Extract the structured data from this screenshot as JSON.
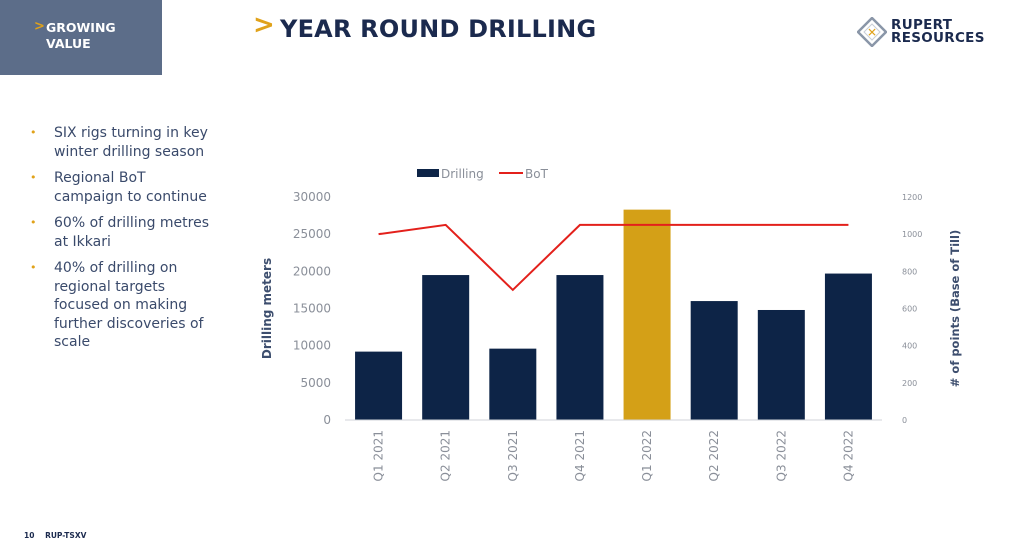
{
  "section_tab": {
    "chevron": ">",
    "label": "GROWING VALUE"
  },
  "header": {
    "chevron": ">",
    "title": "YEAR ROUND DRILLING"
  },
  "logo": {
    "line1": "RUPERT",
    "line2": "RESOURCES",
    "mark": "✕",
    "accent_color": "#e0a21a"
  },
  "bullets": [
    "SIX rigs turning in key winter drilling season",
    "Regional BoT campaign to continue",
    "60% of drilling metres at Ikkari",
    "40% of drilling on regional targets focused on making further discoveries of scale"
  ],
  "footer": {
    "page_number": "10",
    "ticker": "RUP-TSXV"
  },
  "colors": {
    "bar": "#0d2447",
    "highlight": "#d4a017",
    "line": "#e3201b"
  },
  "chart_data": {
    "type": "bar",
    "categories": [
      "Q1 2021",
      "Q2 2021",
      "Q3 2021",
      "Q4 2021",
      "Q1 2022",
      "Q2 2022",
      "Q3 2022",
      "Q4 2022"
    ],
    "series": [
      {
        "name": "Drilling",
        "type": "bar",
        "axis": "left",
        "values": [
          9200,
          19500,
          9600,
          19500,
          28300,
          16000,
          14800,
          19700
        ],
        "highlight_index": 4
      },
      {
        "name": "BoT",
        "type": "line",
        "axis": "right",
        "values": [
          1000,
          1050,
          700,
          1050,
          1050,
          1050,
          1050,
          1050
        ]
      }
    ],
    "ylabel": "Drilling meters",
    "y2label": "# of points (Base of Till)",
    "ylim": [
      0,
      30000
    ],
    "y2lim": [
      0,
      1200
    ],
    "yticks": [
      "0",
      "5000",
      "10000",
      "15000",
      "20000",
      "25000",
      "30000"
    ],
    "y2ticks": [
      "0",
      "200",
      "400",
      "600",
      "800",
      "1000",
      "1200"
    ],
    "legend": "top"
  }
}
